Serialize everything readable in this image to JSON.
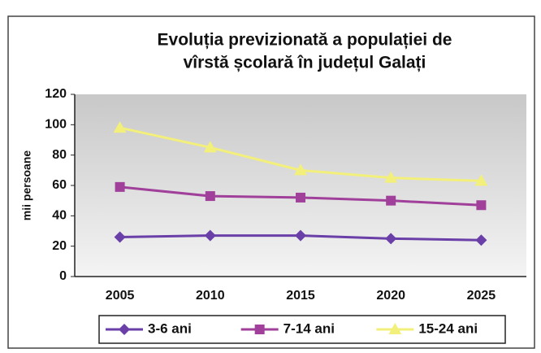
{
  "chart_data": {
    "type": "line",
    "title": [
      "Evoluția previzionată a populației de",
      "vîrstă școlară în județul Galați"
    ],
    "ylabel": "mii persoane",
    "categories": [
      "2005",
      "2010",
      "2015",
      "2020",
      "2025"
    ],
    "series": [
      {
        "name": "3-6 ani",
        "color": "#6a3fa8",
        "marker": "diamond",
        "values": [
          26,
          27,
          27,
          25,
          24
        ]
      },
      {
        "name": "7-14 ani",
        "color": "#a0409a",
        "marker": "square",
        "values": [
          59,
          53,
          52,
          50,
          47
        ]
      },
      {
        "name": "15-24 ani",
        "color": "#f2f07a",
        "marker": "triangle",
        "values": [
          98,
          85,
          70,
          65,
          63
        ]
      }
    ],
    "ylim": [
      0,
      120
    ],
    "yticks": [
      0,
      20,
      40,
      60,
      80,
      100,
      120
    ],
    "grid": false,
    "legend": "bottom"
  }
}
